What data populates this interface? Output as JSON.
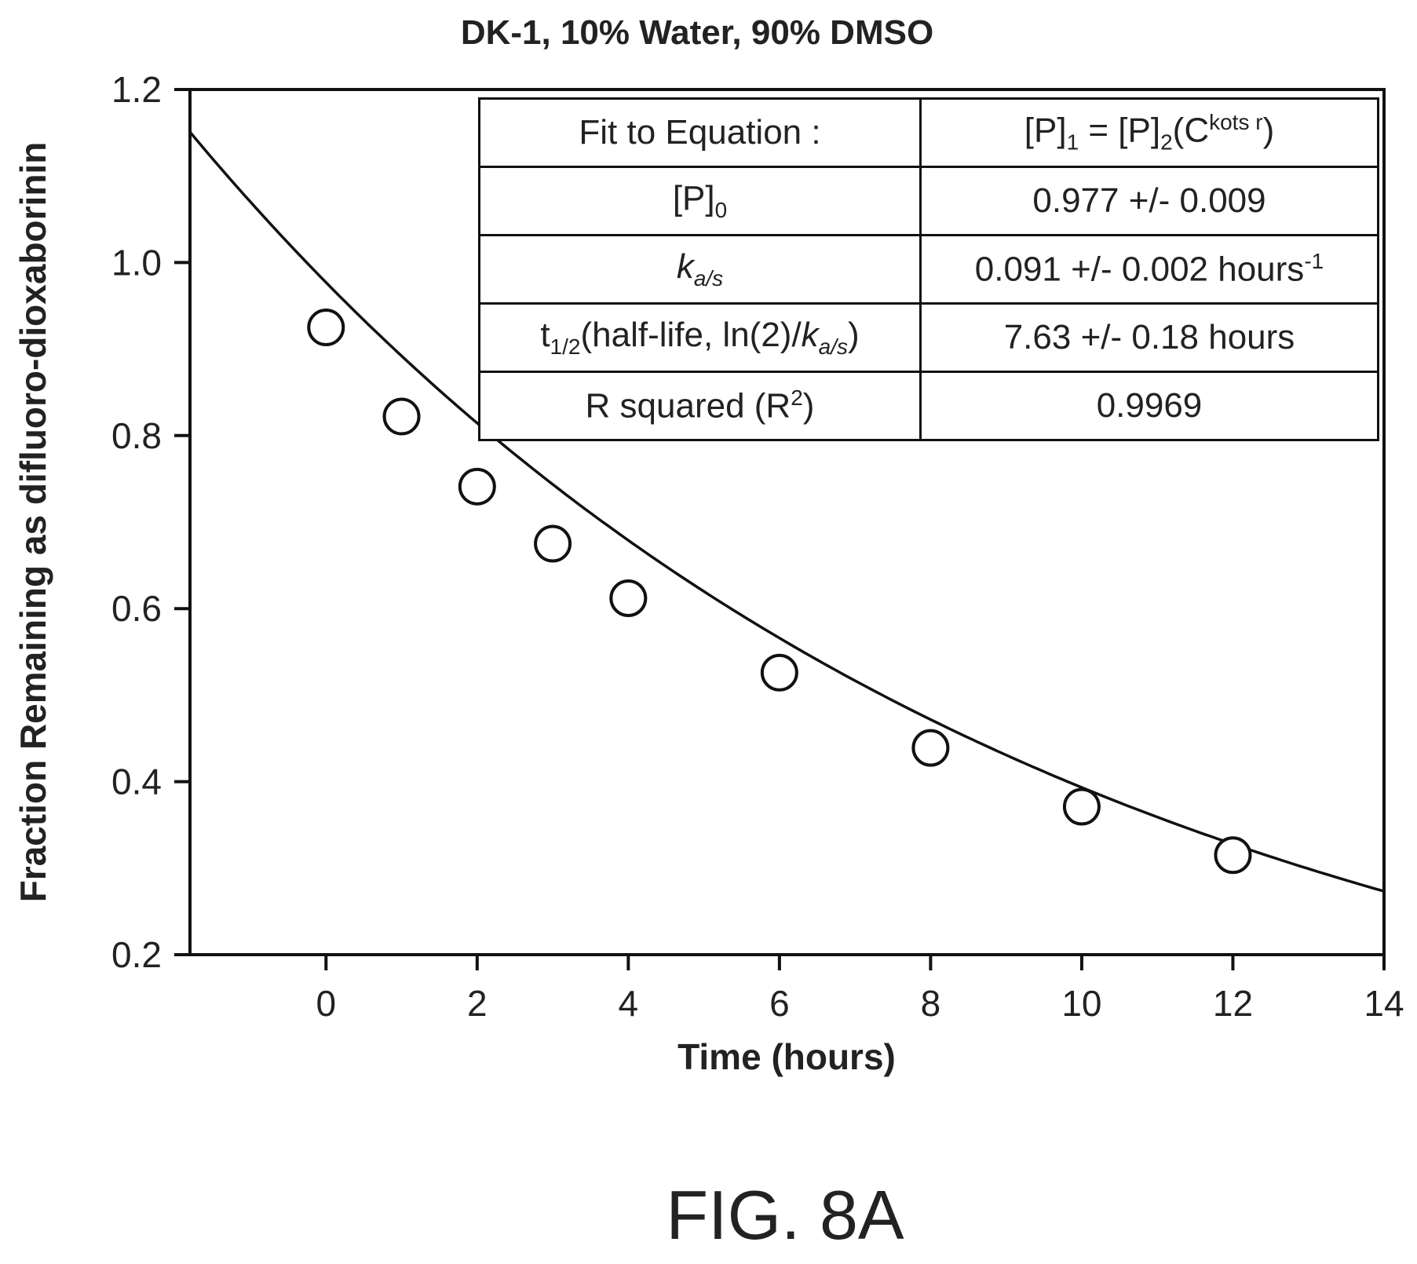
{
  "chart_data": {
    "type": "scatter",
    "title": "DK-1, 10% Water, 90% DMSO",
    "xlabel": "Time (hours)",
    "ylabel": "Fraction Remaining as difluoro-dioxaborinin",
    "xlim": [
      -1.8,
      14
    ],
    "ylim": [
      0.2,
      1.2
    ],
    "x_ticks": [
      0,
      2,
      4,
      6,
      8,
      10,
      12,
      14
    ],
    "x_tick_labels": [
      "0",
      "2",
      "4",
      "6",
      "8",
      "10",
      "12",
      "14"
    ],
    "y_ticks": [
      0.2,
      0.4,
      0.6,
      0.8,
      1.0,
      1.2
    ],
    "y_tick_labels": [
      "0.2",
      "0.4",
      "0.6",
      "0.8",
      "1.0",
      "1.2"
    ],
    "grid": false,
    "series": [
      {
        "marker": "open-circle",
        "x": [
          0,
          1,
          2,
          3,
          4,
          6,
          8,
          10,
          12
        ],
        "y": [
          0.925,
          0.822,
          0.741,
          0.675,
          0.612,
          0.526,
          0.439,
          0.371,
          0.315
        ]
      }
    ],
    "fit_curve": {
      "equation": "y = P0 * exp(-k * x)",
      "P0": 0.977,
      "k": 0.091,
      "x_range": [
        -1.8,
        14
      ]
    },
    "annotations": {
      "fit_table": {
        "rows": [
          {
            "label": "Fit to Equation :",
            "value_main": "[P]",
            "value_sub1": "1",
            "value_mid": " = [P]",
            "value_sub2": "2",
            "value_open": "(C",
            "value_sup": "kots r",
            "value_close": ")"
          },
          {
            "label_main": "[P]",
            "label_sub": "0",
            "value": "0.977 +/- 0.009"
          },
          {
            "label_main": "k",
            "label_sub": "a/s",
            "value_main": "0.091 +/- 0.002 hours",
            "value_sup": "-1"
          },
          {
            "label_main": "t",
            "label_sub": "1/2",
            "label_mid": "(half-life, ln(2)/",
            "label_k": "k",
            "label_k_sub": "a/s",
            "label_close": ")",
            "value": "7.63 +/- 0.18 hours"
          },
          {
            "label_main": "R squared (R",
            "label_sup": "2",
            "label_close": ")",
            "value": "0.9969"
          }
        ]
      }
    },
    "figure_label": "FIG. 8A"
  }
}
